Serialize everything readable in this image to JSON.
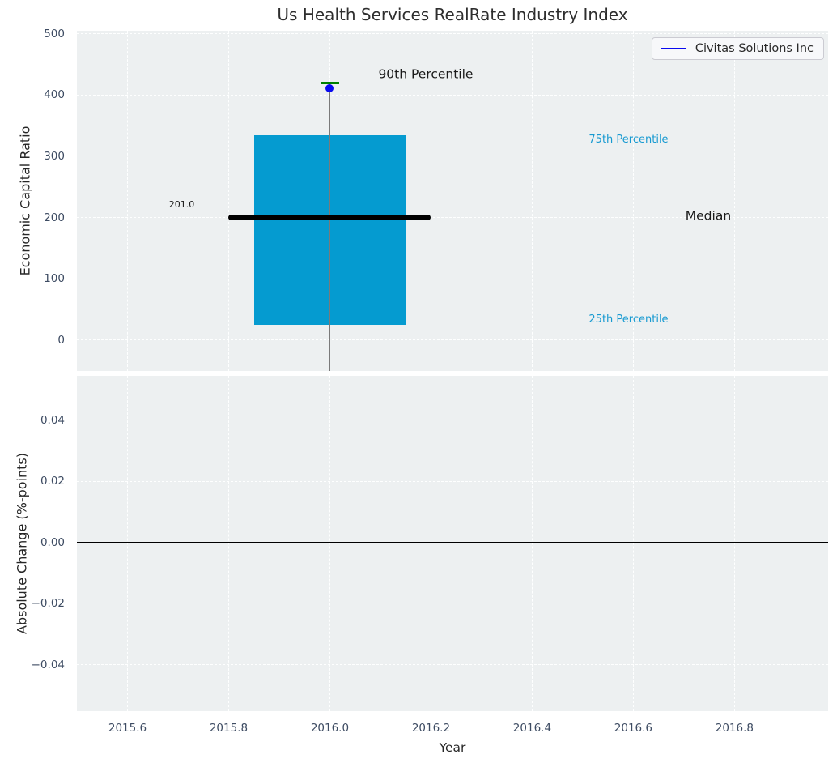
{
  "title": "Us Health Services RealRate Industry Index",
  "legend": {
    "label": "Civitas Solutions Inc",
    "position": "upper right"
  },
  "colors": {
    "figure_bg": "#ffffff",
    "plot_bg": "#edf0f1",
    "grid": "#ffffff",
    "box": "#059bd0",
    "median": "#000000",
    "whisker": "#7a7a7a",
    "p90_marker": "#007f00",
    "company_dot": "#0a0af0",
    "legend_line": "#0a0af0",
    "percentile_label": "#189ad1",
    "tick_label": "#3e4c63",
    "zero_line": "#000000",
    "title_text": "#2e2e2e"
  },
  "chart_data": [
    {
      "type": "box",
      "title": "Us Health Services RealRate Industry Index",
      "ylabel": "Economic Capital Ratio",
      "xlim": [
        2015.5,
        2016.985
      ],
      "ylim": [
        -50,
        505
      ],
      "grid": true,
      "show_xtick_labels": false,
      "yticks": [
        {
          "v": 0,
          "label": "0"
        },
        {
          "v": 100,
          "label": "100"
        },
        {
          "v": 200,
          "label": "200"
        },
        {
          "v": 300,
          "label": "300"
        },
        {
          "v": 400,
          "label": "400"
        },
        {
          "v": 500,
          "label": "500"
        }
      ],
      "xticks": [
        {
          "v": 2015.6,
          "label": "2015.6"
        },
        {
          "v": 2015.8,
          "label": "2015.8"
        },
        {
          "v": 2016.0,
          "label": "2016.0"
        },
        {
          "v": 2016.2,
          "label": "2016.2"
        },
        {
          "v": 2016.4,
          "label": "2016.4"
        },
        {
          "v": 2016.6,
          "label": "2016.6"
        },
        {
          "v": 2016.8,
          "label": "2016.8"
        }
      ],
      "box": {
        "x": 2016.0,
        "q25": 25,
        "median": 201.0,
        "q75": 335,
        "p90": 420,
        "box_halfwidth": 0.15,
        "median_halfwidth": 0.2,
        "p90_halfwidth": 0.018,
        "company": {
          "name": "Civitas Solutions Inc",
          "x": 2016.0,
          "value": 411
        }
      },
      "annotations": [
        {
          "id": "p90-label",
          "text": "90th Percentile",
          "x": 2016.096,
          "y": 433,
          "size": 15.5,
          "color": "#1a1a1a"
        },
        {
          "id": "p75-label",
          "text": "75th Percentile",
          "x": 2016.512,
          "y": 327,
          "size": 13,
          "color": "#189ad1"
        },
        {
          "id": "median-label",
          "text": "Median",
          "x": 2016.703,
          "y": 202,
          "size": 15.5,
          "color": "#1a1a1a"
        },
        {
          "id": "p25-label",
          "text": "25th Percentile",
          "x": 2016.512,
          "y": 33,
          "size": 13,
          "color": "#189ad1"
        },
        {
          "id": "median-value",
          "text": "201.0",
          "x": 2015.682,
          "y": 221,
          "size": 11,
          "color": "#1a1a1a"
        }
      ]
    },
    {
      "type": "line",
      "ylabel": "Absolute Change (%-points)",
      "xlabel": "Year",
      "xlim": [
        2015.5,
        2016.985
      ],
      "ylim": [
        -0.0552,
        0.0546
      ],
      "grid": true,
      "show_xtick_labels": true,
      "zero_line": 0.0,
      "yticks": [
        {
          "v": 0.04,
          "label": "0.04"
        },
        {
          "v": 0.02,
          "label": "0.02"
        },
        {
          "v": 0.0,
          "label": "0.00"
        },
        {
          "v": -0.02,
          "label": "−0.02"
        },
        {
          "v": -0.04,
          "label": "−0.04"
        }
      ],
      "xticks": [
        {
          "v": 2015.6,
          "label": "2015.6"
        },
        {
          "v": 2015.8,
          "label": "2015.8"
        },
        {
          "v": 2016.0,
          "label": "2016.0"
        },
        {
          "v": 2016.2,
          "label": "2016.2"
        },
        {
          "v": 2016.4,
          "label": "2016.4"
        },
        {
          "v": 2016.6,
          "label": "2016.6"
        },
        {
          "v": 2016.8,
          "label": "2016.8"
        }
      ]
    }
  ]
}
